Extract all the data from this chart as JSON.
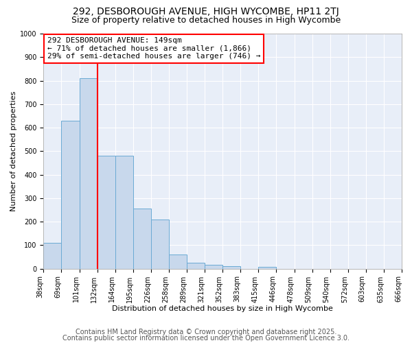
{
  "title1": "292, DESBOROUGH AVENUE, HIGH WYCOMBE, HP11 2TJ",
  "title2": "Size of property relative to detached houses in High Wycombe",
  "xlabel": "Distribution of detached houses by size in High Wycombe",
  "ylabel": "Number of detached properties",
  "footer1": "Contains HM Land Registry data © Crown copyright and database right 2025.",
  "footer2": "Contains public sector information licensed under the Open Government Licence 3.0.",
  "bin_labels": [
    "38sqm",
    "69sqm",
    "101sqm",
    "132sqm",
    "164sqm",
    "195sqm",
    "226sqm",
    "258sqm",
    "289sqm",
    "321sqm",
    "352sqm",
    "383sqm",
    "415sqm",
    "446sqm",
    "478sqm",
    "509sqm",
    "540sqm",
    "572sqm",
    "603sqm",
    "635sqm",
    "666sqm"
  ],
  "bar_values": [
    110,
    630,
    810,
    480,
    480,
    255,
    210,
    60,
    25,
    15,
    10,
    0,
    8,
    0,
    0,
    0,
    0,
    0,
    0,
    0
  ],
  "bar_color": "#c8d8ec",
  "bar_edge_color": "#6aaad4",
  "red_line_x": 3.0,
  "annotation_line1": "292 DESBOROUGH AVENUE: 149sqm",
  "annotation_line2": "← 71% of detached houses are smaller (1,866)",
  "annotation_line3": "29% of semi-detached houses are larger (746) →",
  "ylim": [
    0,
    1000
  ],
  "yticks": [
    0,
    100,
    200,
    300,
    400,
    500,
    600,
    700,
    800,
    900,
    1000
  ],
  "bg_color": "#ffffff",
  "plot_bg_color": "#e8eef8",
  "grid_color": "#ffffff",
  "title1_fontsize": 10,
  "title2_fontsize": 9,
  "axis_fontsize": 8,
  "tick_fontsize": 7,
  "annotation_fontsize": 8,
  "footer_fontsize": 7
}
